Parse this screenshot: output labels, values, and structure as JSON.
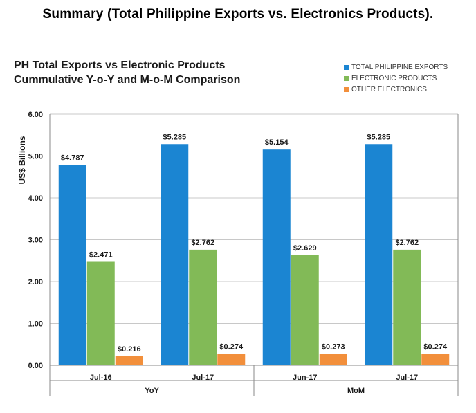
{
  "page": {
    "heading": "Summary (Total Philippine  Exports vs. Electronics  Products)."
  },
  "chart_data": {
    "type": "bar",
    "title_lines": [
      "PH Total Exports vs Electronic Products",
      "Cummulative Y-o-Y and M-o-M Comparison"
    ],
    "ylabel": "US$ Billions",
    "ylim": [
      0,
      6
    ],
    "yticks": [
      "0.00",
      "1.00",
      "2.00",
      "3.00",
      "4.00",
      "5.00",
      "6.00"
    ],
    "grid": true,
    "legend_position": "top-right",
    "categories": [
      "Jul-16",
      "Jul-17",
      "Jun-17",
      "Jul-17"
    ],
    "groups": [
      {
        "label": "YoY",
        "categories": [
          "Jul-16",
          "Jul-17"
        ]
      },
      {
        "label": "MoM",
        "categories": [
          "Jun-17",
          "Jul-17"
        ]
      }
    ],
    "series": [
      {
        "name": "TOTAL PHILIPPINE EXPORTS",
        "color": "#1b85d2",
        "values": [
          4.787,
          5.285,
          5.154,
          5.285
        ],
        "labels": [
          "$4.787",
          "$5.285",
          "$5.154",
          "$5.285"
        ]
      },
      {
        "name": "ELECTRONIC PRODUCTS",
        "color": "#82ba57",
        "values": [
          2.471,
          2.762,
          2.629,
          2.762
        ],
        "labels": [
          "$2.471",
          "$2.762",
          "$2.629",
          "$2.762"
        ]
      },
      {
        "name": "OTHER ELECTRONICS",
        "color": "#f28f3b",
        "values": [
          0.216,
          0.274,
          0.273,
          0.274
        ],
        "labels": [
          "$0.216",
          "$0.274",
          "$0.273",
          "$0.274"
        ]
      }
    ]
  }
}
